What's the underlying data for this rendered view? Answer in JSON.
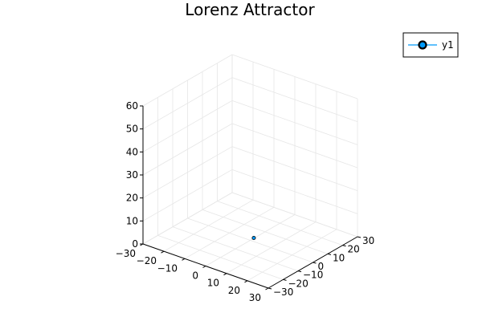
{
  "chart_data": {
    "type": "scatter",
    "projection": "3d",
    "title": "Lorenz Attractor",
    "xlabel": "",
    "ylabel": "",
    "zlabel": "",
    "xlim": [
      -30,
      30
    ],
    "ylim": [
      -30,
      30
    ],
    "zlim": [
      0,
      60
    ],
    "x_ticks": [
      -30,
      -20,
      -10,
      0,
      10,
      20,
      30
    ],
    "y_ticks": [
      -30,
      -20,
      -10,
      0,
      10,
      20,
      30
    ],
    "z_ticks": [
      0,
      10,
      20,
      30,
      40,
      50,
      60
    ],
    "x_tick_labels": [
      "−30",
      "−20",
      "−10",
      "0",
      "10",
      "20",
      "30"
    ],
    "y_tick_labels": [
      "−30",
      "−20",
      "−10",
      "0",
      "10",
      "20",
      "30"
    ],
    "z_tick_labels": [
      "0",
      "10",
      "20",
      "30",
      "40",
      "50",
      "60"
    ],
    "grid": true,
    "legend_position": "top-right",
    "series": [
      {
        "name": "y1",
        "color": "#009AFA",
        "marker": "circle",
        "points": [
          {
            "x": 1,
            "y": 1,
            "z": 1
          }
        ]
      }
    ]
  },
  "colors": {
    "series": "#009AFA",
    "marker_edge": "#000000",
    "grid": "#e6e6e6",
    "axis": "#000000"
  }
}
